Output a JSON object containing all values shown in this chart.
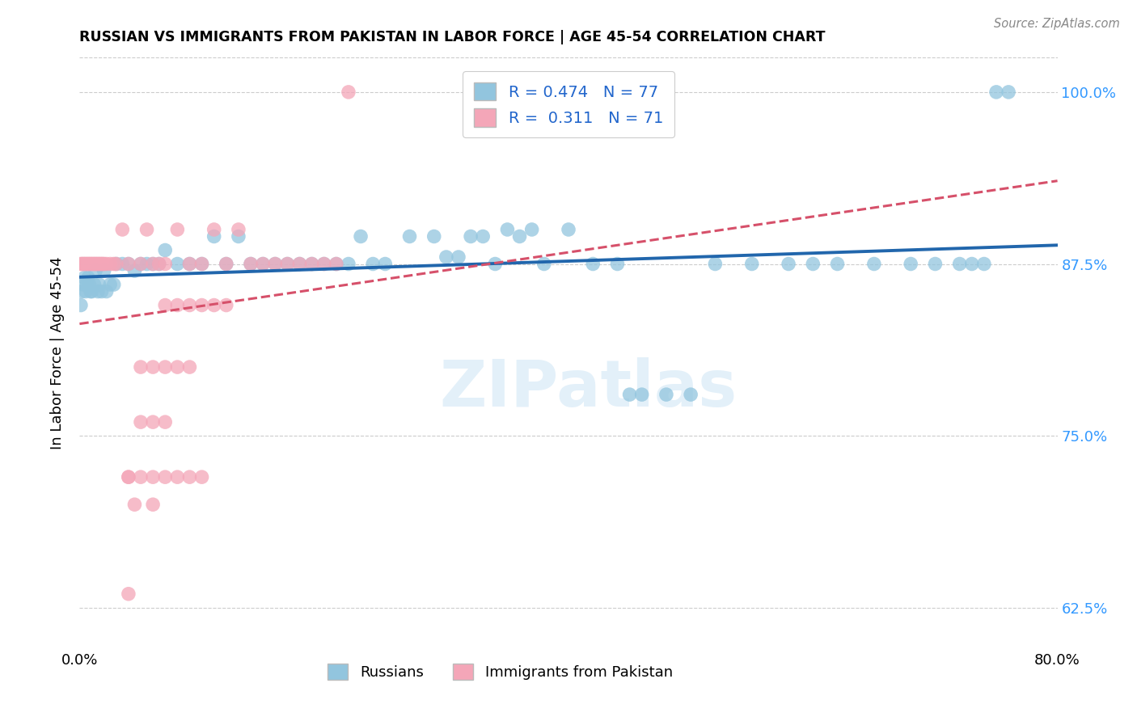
{
  "title": "RUSSIAN VS IMMIGRANTS FROM PAKISTAN IN LABOR FORCE | AGE 45-54 CORRELATION CHART",
  "source": "Source: ZipAtlas.com",
  "ylabel": "In Labor Force | Age 45-54",
  "xlim": [
    0.0,
    0.8
  ],
  "ylim": [
    0.595,
    1.025
  ],
  "yticks": [
    0.625,
    0.75,
    0.875,
    1.0
  ],
  "ytick_labels": [
    "62.5%",
    "75.0%",
    "87.5%",
    "100.0%"
  ],
  "xticks": [
    0.0,
    0.1,
    0.2,
    0.3,
    0.4,
    0.5,
    0.6,
    0.7,
    0.8
  ],
  "xtick_labels": [
    "0.0%",
    "",
    "",
    "",
    "",
    "",
    "",
    "",
    "80.0%"
  ],
  "blue_R": 0.474,
  "blue_N": 77,
  "pink_R": 0.311,
  "pink_N": 71,
  "blue_color": "#92c5de",
  "pink_color": "#f4a6b8",
  "trend_blue": "#2166ac",
  "trend_pink": "#d6506a",
  "watermark": "ZIPatlas",
  "blue_scatter_x": [
    0.001,
    0.002,
    0.003,
    0.004,
    0.005,
    0.006,
    0.007,
    0.008,
    0.009,
    0.01,
    0.012,
    0.013,
    0.015,
    0.016,
    0.018,
    0.02,
    0.022,
    0.025,
    0.028,
    0.03,
    0.035,
    0.04,
    0.045,
    0.05,
    0.055,
    0.06,
    0.065,
    0.07,
    0.08,
    0.09,
    0.1,
    0.11,
    0.12,
    0.13,
    0.14,
    0.15,
    0.16,
    0.17,
    0.18,
    0.19,
    0.2,
    0.21,
    0.22,
    0.23,
    0.24,
    0.25,
    0.27,
    0.29,
    0.3,
    0.31,
    0.32,
    0.33,
    0.34,
    0.35,
    0.36,
    0.37,
    0.38,
    0.4,
    0.42,
    0.44,
    0.45,
    0.46,
    0.48,
    0.5,
    0.52,
    0.55,
    0.58,
    0.6,
    0.62,
    0.65,
    0.68,
    0.7,
    0.72,
    0.73,
    0.74,
    0.75,
    0.76
  ],
  "blue_scatter_y": [
    0.845,
    0.855,
    0.86,
    0.865,
    0.855,
    0.86,
    0.865,
    0.86,
    0.855,
    0.855,
    0.86,
    0.87,
    0.855,
    0.86,
    0.855,
    0.87,
    0.855,
    0.86,
    0.86,
    0.875,
    0.875,
    0.875,
    0.87,
    0.875,
    0.875,
    0.875,
    0.875,
    0.885,
    0.875,
    0.875,
    0.875,
    0.895,
    0.875,
    0.895,
    0.875,
    0.875,
    0.875,
    0.875,
    0.875,
    0.875,
    0.875,
    0.875,
    0.875,
    0.895,
    0.875,
    0.875,
    0.895,
    0.895,
    0.88,
    0.88,
    0.895,
    0.895,
    0.875,
    0.9,
    0.895,
    0.9,
    0.875,
    0.9,
    0.875,
    0.875,
    0.78,
    0.78,
    0.78,
    0.78,
    0.875,
    0.875,
    0.875,
    0.875,
    0.875,
    0.875,
    0.875,
    0.875,
    0.875,
    0.875,
    0.875,
    1.0,
    1.0
  ],
  "pink_scatter_x": [
    0.001,
    0.002,
    0.003,
    0.004,
    0.005,
    0.006,
    0.007,
    0.008,
    0.009,
    0.01,
    0.011,
    0.012,
    0.013,
    0.014,
    0.015,
    0.016,
    0.017,
    0.018,
    0.019,
    0.02,
    0.022,
    0.025,
    0.028,
    0.03,
    0.035,
    0.04,
    0.05,
    0.055,
    0.06,
    0.065,
    0.07,
    0.08,
    0.09,
    0.1,
    0.11,
    0.12,
    0.13,
    0.14,
    0.15,
    0.16,
    0.17,
    0.18,
    0.19,
    0.2,
    0.21,
    0.22,
    0.07,
    0.08,
    0.09,
    0.1,
    0.11,
    0.12,
    0.05,
    0.06,
    0.07,
    0.08,
    0.09,
    0.05,
    0.06,
    0.07,
    0.04,
    0.04,
    0.05,
    0.06,
    0.07,
    0.08,
    0.09,
    0.1,
    0.045,
    0.06,
    0.04
  ],
  "pink_scatter_y": [
    0.875,
    0.875,
    0.875,
    0.875,
    0.875,
    0.875,
    0.875,
    0.875,
    0.875,
    0.875,
    0.875,
    0.875,
    0.875,
    0.875,
    0.875,
    0.875,
    0.875,
    0.875,
    0.875,
    0.875,
    0.875,
    0.875,
    0.875,
    0.875,
    0.9,
    0.875,
    0.875,
    0.9,
    0.875,
    0.875,
    0.875,
    0.9,
    0.875,
    0.875,
    0.9,
    0.875,
    0.9,
    0.875,
    0.875,
    0.875,
    0.875,
    0.875,
    0.875,
    0.875,
    0.875,
    1.0,
    0.845,
    0.845,
    0.845,
    0.845,
    0.845,
    0.845,
    0.8,
    0.8,
    0.8,
    0.8,
    0.8,
    0.76,
    0.76,
    0.76,
    0.72,
    0.72,
    0.72,
    0.72,
    0.72,
    0.72,
    0.72,
    0.72,
    0.7,
    0.7,
    0.635
  ]
}
